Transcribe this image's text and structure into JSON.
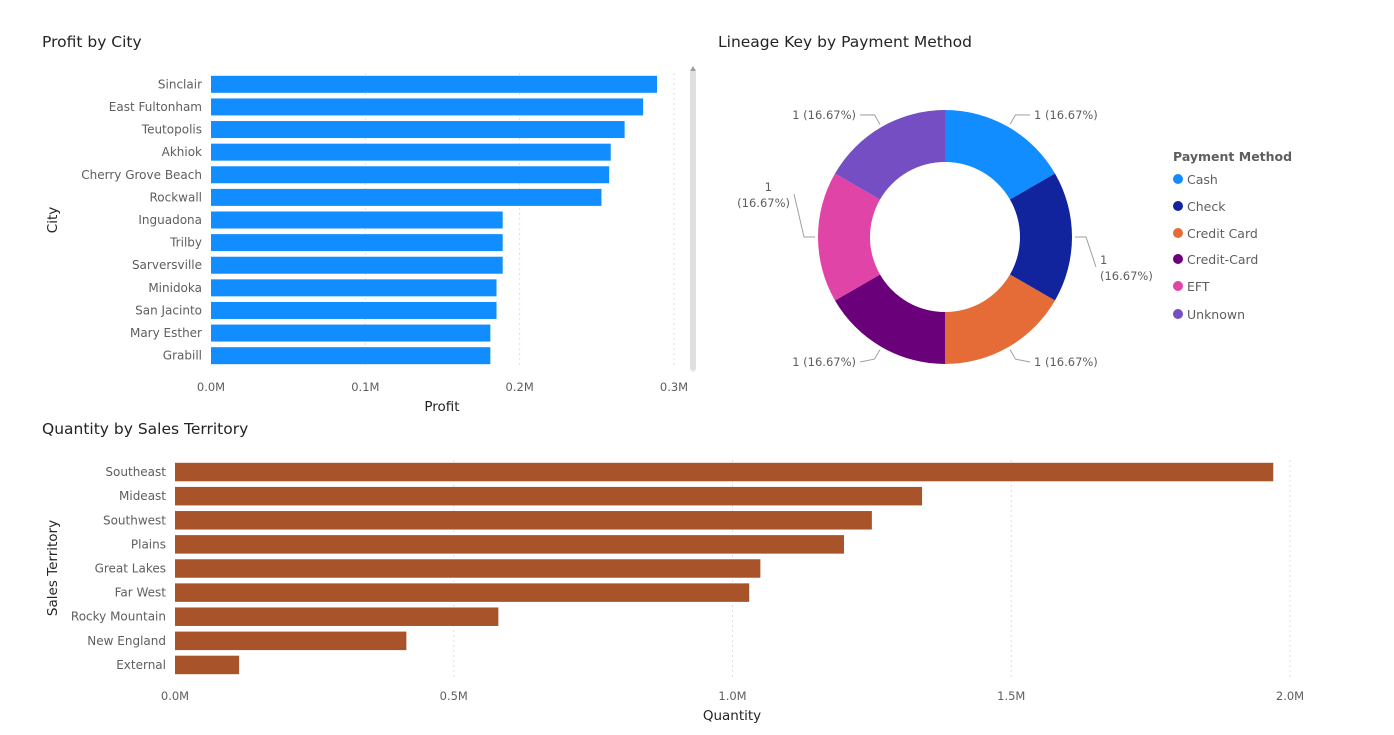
{
  "chart_data": [
    {
      "type": "bar",
      "orientation": "horizontal",
      "title": "Profit by City",
      "xlabel": "Profit",
      "ylabel": "City",
      "xlim": [
        0,
        300000
      ],
      "ticks": [
        "0.0M",
        "0.1M",
        "0.2M",
        "0.3M"
      ],
      "grid": true,
      "color": "#118DFF",
      "categories": [
        "Sinclair",
        "East Fultonham",
        "Teutopolis",
        "Akhiok",
        "Cherry Grove Beach",
        "Rockwall",
        "Inguadona",
        "Trilby",
        "Sarversville",
        "Minidoka",
        "San Jacinto",
        "Mary Esther",
        "Grabill"
      ],
      "values": [
        289000,
        280000,
        268000,
        259000,
        258000,
        253000,
        189000,
        189000,
        189000,
        185000,
        185000,
        181000,
        181000
      ]
    },
    {
      "type": "pie",
      "subtype": "donut",
      "title": "Lineage Key by Payment Method",
      "legend_title": "Payment Method",
      "legend_position": "right",
      "categories": [
        "Cash",
        "Check",
        "Credit Card",
        "Credit-Card",
        "EFT",
        "Unknown"
      ],
      "values": [
        1,
        1,
        1,
        1,
        1,
        1
      ],
      "labels": [
        "1 (16.67%)",
        "1 (16.67%)",
        "1 (16.67%)",
        "1 (16.67%)",
        "1 (16.67%)",
        "1 (16.67%)"
      ],
      "colors": [
        "#118DFF",
        "#12239E",
        "#E66C37",
        "#6B007B",
        "#E044A7",
        "#744EC2"
      ]
    },
    {
      "type": "bar",
      "orientation": "horizontal",
      "title": "Quantity by Sales Territory",
      "xlabel": "Quantity",
      "ylabel": "Sales Territory",
      "xlim": [
        0,
        2000000
      ],
      "ticks": [
        "0.0M",
        "0.5M",
        "1.0M",
        "1.5M",
        "2.0M"
      ],
      "grid": true,
      "color": "#A9532B",
      "categories": [
        "Southeast",
        "Mideast",
        "Southwest",
        "Plains",
        "Great Lakes",
        "Far West",
        "Rocky Mountain",
        "New England",
        "External"
      ],
      "values": [
        1970000,
        1340000,
        1250000,
        1200000,
        1050000,
        1030000,
        580000,
        415000,
        115000
      ]
    }
  ]
}
